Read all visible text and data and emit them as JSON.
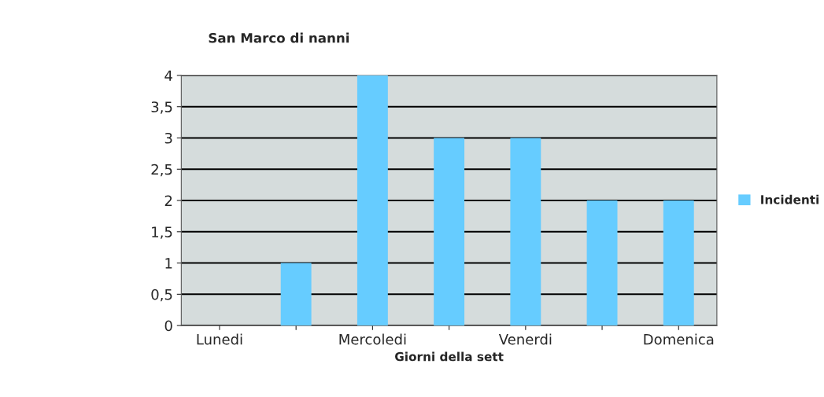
{
  "chart_data": {
    "type": "bar",
    "title": "San Marco di nanni",
    "xlabel": "Giorni della sett",
    "categories": [
      "Lunedi",
      null,
      "Mercoledi",
      null,
      "Venerdi",
      null,
      "Domenica"
    ],
    "series": [
      {
        "name": "Incidenti",
        "color": "#66ccff",
        "values": [
          0,
          1,
          4,
          3,
          3,
          2,
          2
        ]
      }
    ],
    "ylim": [
      0,
      4
    ],
    "yticks": [
      0,
      {
        "value": 0.5,
        "label": "0,5"
      },
      1,
      {
        "value": 1.5,
        "label": "1,5"
      },
      2,
      {
        "value": 2.5,
        "label": "2,5"
      },
      3,
      {
        "value": 3.5,
        "label": "3,5"
      },
      4
    ],
    "grid": "y",
    "legend": "right"
  }
}
